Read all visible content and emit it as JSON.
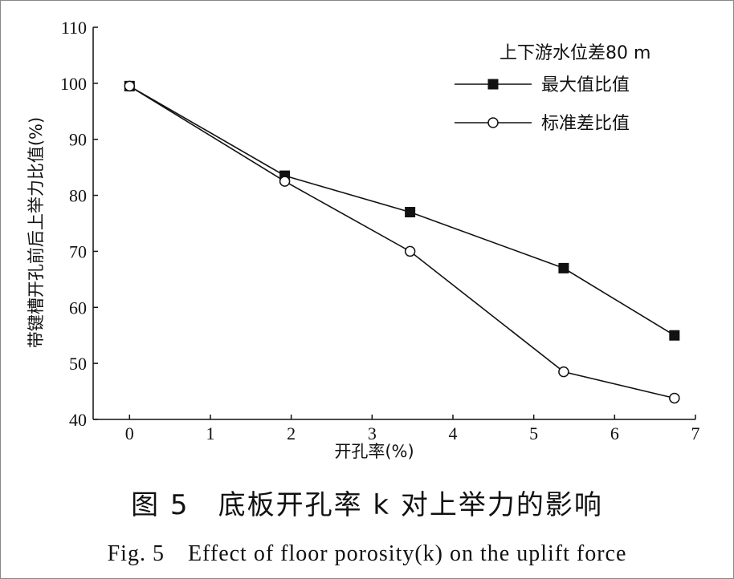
{
  "chart_data": {
    "type": "line",
    "x_ticks": [
      0,
      1,
      2,
      3,
      4,
      5,
      6,
      7
    ],
    "y_ticks": [
      40,
      50,
      60,
      70,
      80,
      90,
      100,
      110
    ],
    "xlim": [
      -0.45,
      7
    ],
    "ylim": [
      40,
      110
    ],
    "xlabel": "开孔率(%)",
    "ylabel": "带键槽开孔前后上举力比值(%)",
    "legend_title": "上下游水位差80 m",
    "legend_position": "top-right",
    "grid": false,
    "series": [
      {
        "name": "最大值比值",
        "marker": "filled-square",
        "color": "#111111",
        "points": [
          {
            "x": 0,
            "y": 99.5
          },
          {
            "x": 1.92,
            "y": 83.5
          },
          {
            "x": 3.47,
            "y": 77
          },
          {
            "x": 5.37,
            "y": 67
          },
          {
            "x": 6.74,
            "y": 55
          }
        ]
      },
      {
        "name": "标准差比值",
        "marker": "open-circle",
        "color": "#111111",
        "points": [
          {
            "x": 0,
            "y": 99.5
          },
          {
            "x": 1.92,
            "y": 82.5
          },
          {
            "x": 3.47,
            "y": 70
          },
          {
            "x": 5.37,
            "y": 48.5
          },
          {
            "x": 6.74,
            "y": 43.8
          }
        ]
      }
    ]
  },
  "caption": {
    "cn": "图 5　底板开孔率 k 对上举力的影响",
    "en": "Fig. 5　Effect of floor porosity(k) on the uplift force"
  }
}
